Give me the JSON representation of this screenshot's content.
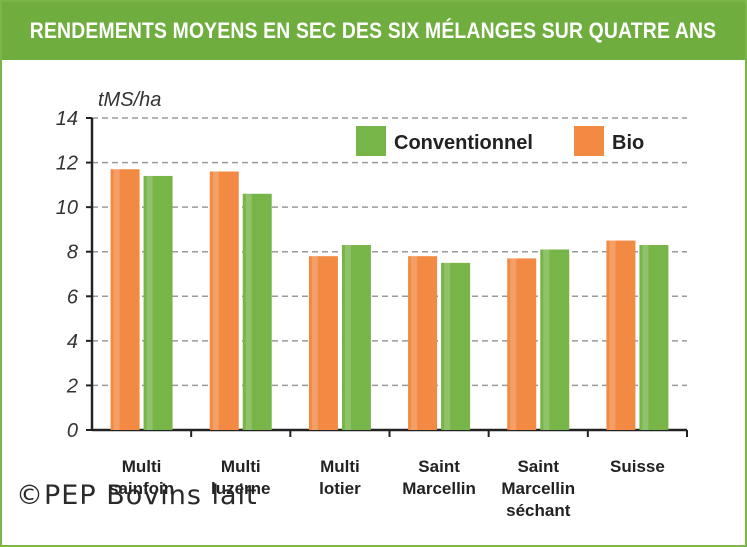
{
  "header": {
    "title": "RENDEMENTS MOYENS EN SEC DES SIX MÉLANGES SUR QUATRE ANS"
  },
  "watermark": "©PEP Bovins lait",
  "colors": {
    "title_bg": "#6fae3e",
    "bio": "#f28a44",
    "conventionnel": "#78b548",
    "grid": "#9a9a9a",
    "axis": "#222222"
  },
  "chart_data": {
    "type": "bar",
    "ylabel": "tMS/ha",
    "ylim": [
      0,
      14
    ],
    "yticks": [
      0,
      2,
      4,
      6,
      8,
      10,
      12,
      14
    ],
    "grid": "horizontal-dashed",
    "legend_position": "top-right",
    "categories": [
      [
        "Multi",
        "sainfoin"
      ],
      [
        "Multi",
        "luzerne"
      ],
      [
        "Multi",
        "lotier"
      ],
      [
        "Saint",
        "Marcellin"
      ],
      [
        "Saint",
        "Marcellin",
        "séchant"
      ],
      [
        "Suisse"
      ]
    ],
    "series": [
      {
        "name": "Bio",
        "color": "#f28a44",
        "values": [
          11.7,
          11.6,
          7.8,
          7.8,
          7.7,
          8.5
        ]
      },
      {
        "name": "Conventionnel",
        "color": "#78b548",
        "values": [
          11.4,
          10.6,
          8.3,
          7.5,
          8.1,
          8.3
        ]
      }
    ],
    "legend_order": [
      "Conventionnel",
      "Bio"
    ]
  }
}
